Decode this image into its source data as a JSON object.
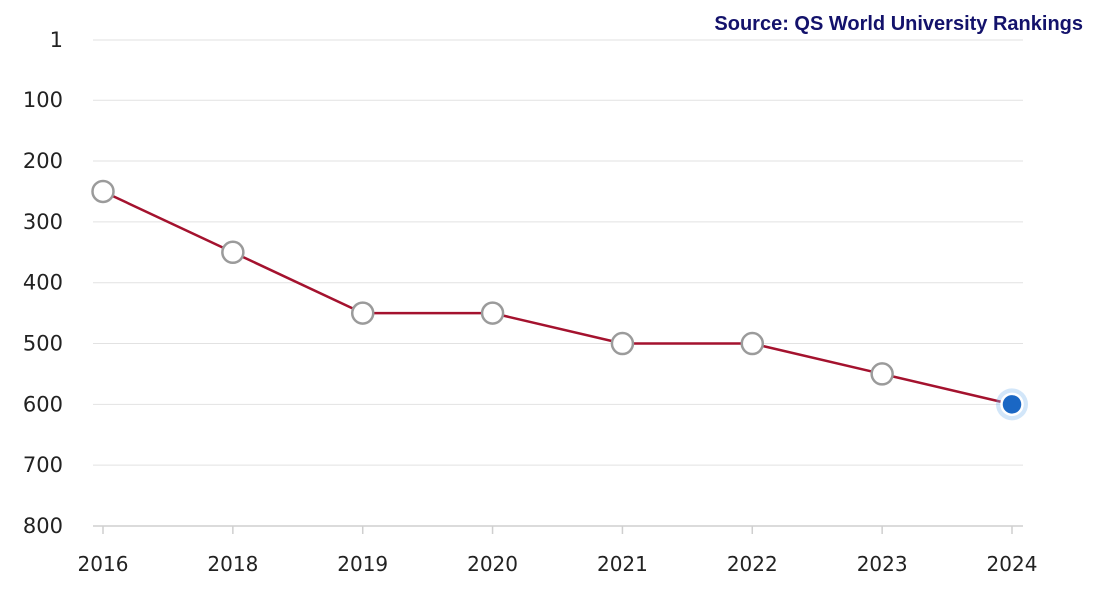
{
  "source_label": "Source: QS World University Rankings",
  "chart_data": {
    "type": "line",
    "title": "",
    "xlabel": "",
    "ylabel": "",
    "categories": [
      "2016",
      "2018",
      "2019",
      "2020",
      "2021",
      "2022",
      "2023",
      "2024"
    ],
    "series": [
      {
        "values": [
          250,
          350,
          450,
          450,
          500,
          500,
          550,
          600
        ]
      }
    ],
    "y_ticks": [
      1,
      100,
      200,
      300,
      400,
      500,
      600,
      700,
      800
    ],
    "y_tick_labels": [
      "1",
      "100",
      "200",
      "300",
      "400",
      "500",
      "600",
      "700",
      "800"
    ],
    "ylim": [
      1,
      800
    ],
    "y_inverted": true,
    "grid": true,
    "legend": "none",
    "colors": {
      "line": "#a4122e",
      "marker_fill": "#ffffff",
      "marker_stroke": "#9b9b9b",
      "highlight_marker": "#1a67c4",
      "source_text": "#13126b"
    },
    "highlighted_point": "2024"
  }
}
